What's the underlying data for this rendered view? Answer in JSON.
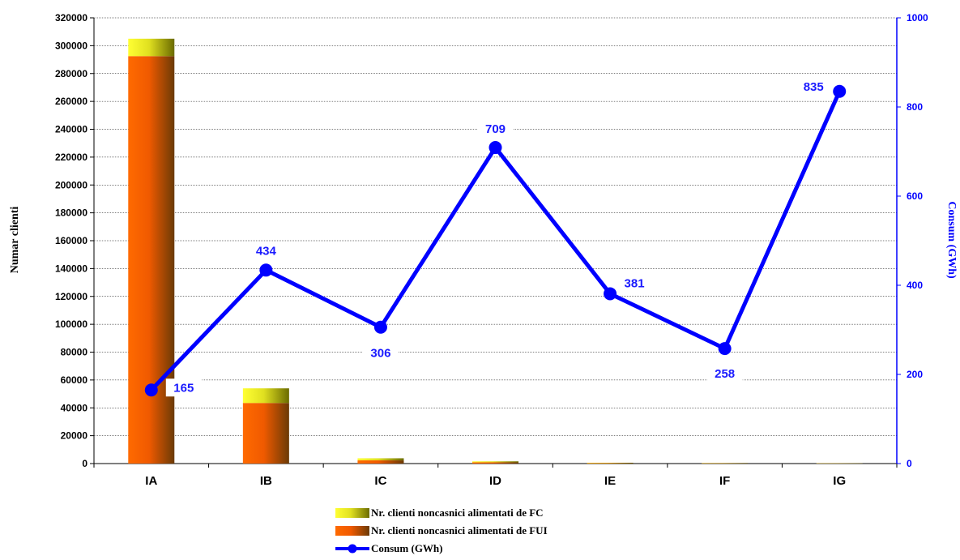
{
  "chart_data": {
    "type": "bar+line",
    "categories": [
      "IA",
      "IB",
      "IC",
      "ID",
      "IE",
      "IF",
      "IG"
    ],
    "bar_series": [
      {
        "name": "Nr. clienti noncasnici alimentati de FUI",
        "values": [
          292500,
          43500,
          2300,
          900,
          300,
          200,
          150
        ],
        "color_dark": "#6b3a06",
        "color_light": "#ff6a00"
      },
      {
        "name": "Nr. clienti noncasnici alimentati de FC",
        "values": [
          12500,
          10500,
          1500,
          700,
          300,
          200,
          150
        ],
        "color_dark": "#6b6b00",
        "color_light": "#ffff33"
      }
    ],
    "line_series": {
      "name": "Consum (GWh)",
      "values": [
        165,
        434,
        306,
        709,
        381,
        258,
        835
      ],
      "color": "#0000ff"
    },
    "left_axis": {
      "label": "Numar clienti",
      "min": 0,
      "max": 320000,
      "step": 20000
    },
    "right_axis": {
      "label": "Consum (GWh)",
      "min": 0,
      "max": 1000,
      "step": 200
    },
    "grid": true,
    "legend_position": "bottom"
  },
  "legend": [
    {
      "label": "Nr. clienti noncasnici alimentati de FC",
      "kind": "fc"
    },
    {
      "label": "Nr. clienti noncasnici alimentati de FUI",
      "kind": "fui"
    },
    {
      "label": "Consum (GWh)",
      "kind": "line"
    }
  ]
}
